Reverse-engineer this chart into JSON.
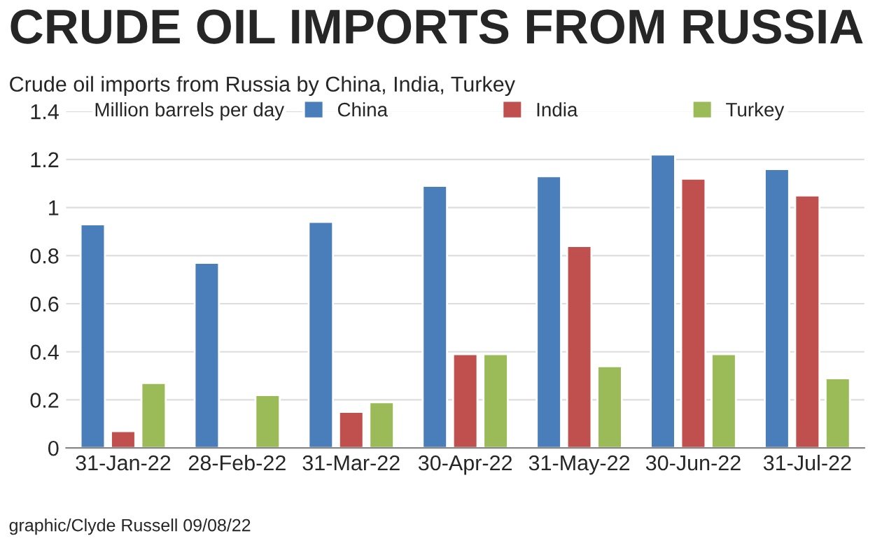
{
  "chart_data": {
    "type": "bar",
    "title": "CRUDE OIL IMPORTS FROM RUSSIA",
    "subtitle": "Crude oil imports from Russia by China, India, Turkey",
    "ylabel": "Million barrels per day",
    "categories": [
      "31-Jan-22",
      "28-Feb-22",
      "31-Mar-22",
      "30-Apr-22",
      "31-May-22",
      "30-Jun-22",
      "31-Jul-22"
    ],
    "series": [
      {
        "name": "China",
        "color": "#4a7ebb",
        "values": [
          0.93,
          0.77,
          0.94,
          1.09,
          1.13,
          1.22,
          1.16
        ]
      },
      {
        "name": "India",
        "color": "#c0504d",
        "values": [
          0.07,
          null,
          0.15,
          0.39,
          0.84,
          1.12,
          1.05
        ]
      },
      {
        "name": "Turkey",
        "color": "#9bbb59",
        "values": [
          0.27,
          0.22,
          0.19,
          0.39,
          0.34,
          0.39,
          0.29
        ]
      }
    ],
    "ylim": [
      0,
      1.4
    ],
    "yticks": [
      0,
      {
        "value": 0.2,
        "label": "0.2"
      },
      {
        "value": 0.4,
        "label": "0.4"
      },
      {
        "value": 0.6,
        "label": "0.6"
      },
      {
        "value": 0.8,
        "label": "0.8"
      },
      1,
      {
        "value": 1.2,
        "label": "1.2"
      },
      {
        "value": 1.4,
        "label": "1.4"
      }
    ],
    "grid": "y",
    "legend": "top",
    "annotations": [
      "graphic/Clyde Russell 09/08/22"
    ]
  }
}
